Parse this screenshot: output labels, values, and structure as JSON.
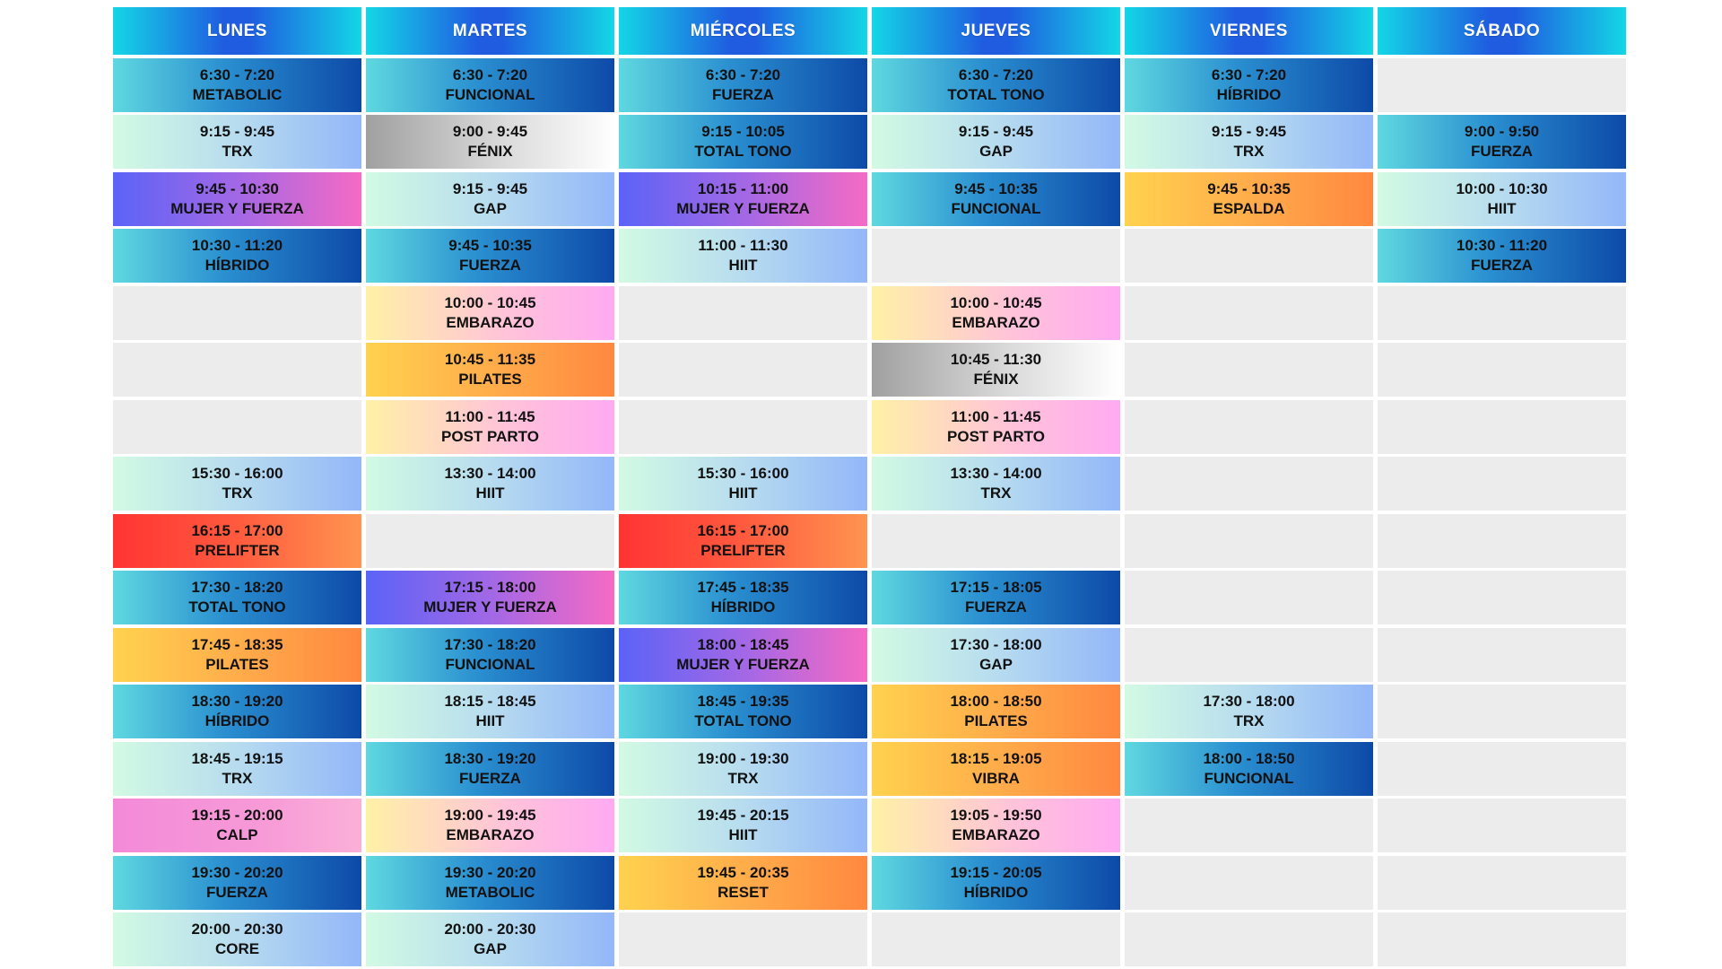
{
  "days": [
    "LUNES",
    "MARTES",
    "MIÉRCOLES",
    "JUEVES",
    "VIERNES",
    "SÁBADO"
  ],
  "columns": [
    {
      "day": "LUNES",
      "slots": [
        {
          "time": "6:30 - 7:20",
          "name": "METABOLIC",
          "style": "blue"
        },
        {
          "time": "9:15 - 9:45",
          "name": "TRX",
          "style": "mint"
        },
        {
          "time": "9:45 - 10:30",
          "name": "MUJER Y FUERZA",
          "style": "violet"
        },
        {
          "time": "10:30 - 11:20",
          "name": "HÍBRIDO",
          "style": "blue"
        },
        null,
        null,
        null,
        {
          "time": "15:30 - 16:00",
          "name": "TRX",
          "style": "mint"
        },
        {
          "time": "16:15 - 17:00",
          "name": "PRELIFTER",
          "style": "red"
        },
        {
          "time": "17:30 - 18:20",
          "name": "TOTAL TONO",
          "style": "blue"
        },
        {
          "time": "17:45 - 18:35",
          "name": "PILATES",
          "style": "orange"
        },
        {
          "time": "18:30 - 19:20",
          "name": "HÍBRIDO",
          "style": "blue"
        },
        {
          "time": "18:45 - 19:15",
          "name": "TRX",
          "style": "mint"
        },
        {
          "time": "19:15 - 20:00",
          "name": "CALP",
          "style": "magenta"
        },
        {
          "time": "19:30 - 20:20",
          "name": "FUERZA",
          "style": "blue"
        },
        {
          "time": "20:00 - 20:30",
          "name": "CORE",
          "style": "mint"
        }
      ]
    },
    {
      "day": "MARTES",
      "slots": [
        {
          "time": "6:30 - 7:20",
          "name": "FUNCIONAL",
          "style": "blue"
        },
        {
          "time": "9:00 - 9:45",
          "name": "FÉNIX",
          "style": "grey"
        },
        {
          "time": "9:15 - 9:45",
          "name": "GAP",
          "style": "mint"
        },
        {
          "time": "9:45 - 10:35",
          "name": "FUERZA",
          "style": "blue"
        },
        {
          "time": "10:00 - 10:45",
          "name": "EMBARAZO",
          "style": "pink"
        },
        {
          "time": "10:45 - 11:35",
          "name": "PILATES",
          "style": "orange"
        },
        {
          "time": "11:00 - 11:45",
          "name": "POST PARTO",
          "style": "pink"
        },
        {
          "time": "13:30 - 14:00",
          "name": "HIIT",
          "style": "mint"
        },
        null,
        {
          "time": "17:15 - 18:00",
          "name": "MUJER Y FUERZA",
          "style": "violet"
        },
        {
          "time": "17:30 - 18:20",
          "name": "FUNCIONAL",
          "style": "blue"
        },
        {
          "time": "18:15 - 18:45",
          "name": "HIIT",
          "style": "mint"
        },
        {
          "time": "18:30 - 19:20",
          "name": "FUERZA",
          "style": "blue"
        },
        {
          "time": "19:00 - 19:45",
          "name": "EMBARAZO",
          "style": "pink"
        },
        {
          "time": "19:30 - 20:20",
          "name": "METABOLIC",
          "style": "blue"
        },
        {
          "time": "20:00 - 20:30",
          "name": "GAP",
          "style": "mint"
        }
      ]
    },
    {
      "day": "MIÉRCOLES",
      "slots": [
        {
          "time": "6:30 - 7:20",
          "name": "FUERZA",
          "style": "blue"
        },
        {
          "time": "9:15 - 10:05",
          "name": "TOTAL TONO",
          "style": "blue"
        },
        {
          "time": "10:15 - 11:00",
          "name": "MUJER Y FUERZA",
          "style": "violet"
        },
        {
          "time": "11:00 - 11:30",
          "name": "HIIT",
          "style": "mint"
        },
        null,
        null,
        null,
        {
          "time": "15:30 - 16:00",
          "name": "HIIT",
          "style": "mint"
        },
        {
          "time": "16:15 - 17:00",
          "name": "PRELIFTER",
          "style": "red"
        },
        {
          "time": "17:45 - 18:35",
          "name": "HÍBRIDO",
          "style": "blue"
        },
        {
          "time": "18:00 - 18:45",
          "name": "MUJER Y FUERZA",
          "style": "violet"
        },
        {
          "time": "18:45 - 19:35",
          "name": "TOTAL TONO",
          "style": "blue"
        },
        {
          "time": "19:00 - 19:30",
          "name": "TRX",
          "style": "mint"
        },
        {
          "time": "19:45 - 20:15",
          "name": "HIIT",
          "style": "mint"
        },
        {
          "time": "19:45 - 20:35",
          "name": "RESET",
          "style": "orange"
        },
        null
      ]
    },
    {
      "day": "JUEVES",
      "slots": [
        {
          "time": "6:30 - 7:20",
          "name": "TOTAL TONO",
          "style": "blue"
        },
        {
          "time": "9:15 - 9:45",
          "name": "GAP",
          "style": "mint"
        },
        {
          "time": "9:45 - 10:35",
          "name": "FUNCIONAL",
          "style": "blue"
        },
        null,
        {
          "time": "10:00 - 10:45",
          "name": "EMBARAZO",
          "style": "pink"
        },
        {
          "time": "10:45 - 11:30",
          "name": "FÉNIX",
          "style": "grey"
        },
        {
          "time": "11:00 - 11:45",
          "name": "POST PARTO",
          "style": "pink"
        },
        {
          "time": "13:30 - 14:00",
          "name": "TRX",
          "style": "mint"
        },
        null,
        {
          "time": "17:15 - 18:05",
          "name": "FUERZA",
          "style": "blue"
        },
        {
          "time": "17:30 - 18:00",
          "name": "GAP",
          "style": "mint"
        },
        {
          "time": "18:00 - 18:50",
          "name": "PILATES",
          "style": "orange"
        },
        {
          "time": "18:15 - 19:05",
          "name": "VIBRA",
          "style": "orange"
        },
        {
          "time": "19:05 - 19:50",
          "name": "EMBARAZO",
          "style": "pink"
        },
        {
          "time": "19:15 - 20:05",
          "name": "HÍBRIDO",
          "style": "blue"
        },
        null
      ]
    },
    {
      "day": "VIERNES",
      "slots": [
        {
          "time": "6:30 - 7:20",
          "name": "HÍBRIDO",
          "style": "blue"
        },
        {
          "time": "9:15 - 9:45",
          "name": "TRX",
          "style": "mint"
        },
        {
          "time": "9:45 - 10:35",
          "name": "ESPALDA",
          "style": "orange"
        },
        null,
        null,
        null,
        null,
        null,
        null,
        null,
        null,
        {
          "time": "17:30 - 18:00",
          "name": "TRX",
          "style": "mint"
        },
        {
          "time": "18:00 - 18:50",
          "name": "FUNCIONAL",
          "style": "blue"
        },
        null,
        null,
        null
      ]
    },
    {
      "day": "SÁBADO",
      "slots": [
        null,
        {
          "time": "9:00 - 9:50",
          "name": "FUERZA",
          "style": "blue"
        },
        {
          "time": "10:00 - 10:30",
          "name": "HIIT",
          "style": "mint"
        },
        {
          "time": "10:30 - 11:20",
          "name": "FUERZA",
          "style": "blue"
        },
        null,
        null,
        null,
        null,
        null,
        null,
        null,
        null,
        null,
        null,
        null,
        null
      ]
    }
  ],
  "colors": {
    "blue": "#0d4aa8",
    "mint": "#93b7f8",
    "grey": "#a0a0a0",
    "violet": "#5b63f7",
    "orange": "#ffa94a",
    "pink": "#ffaaf2",
    "red": "#ff3434",
    "magenta": "#f38ad9",
    "empty": "#ececec",
    "header": "#1f5ce0"
  }
}
